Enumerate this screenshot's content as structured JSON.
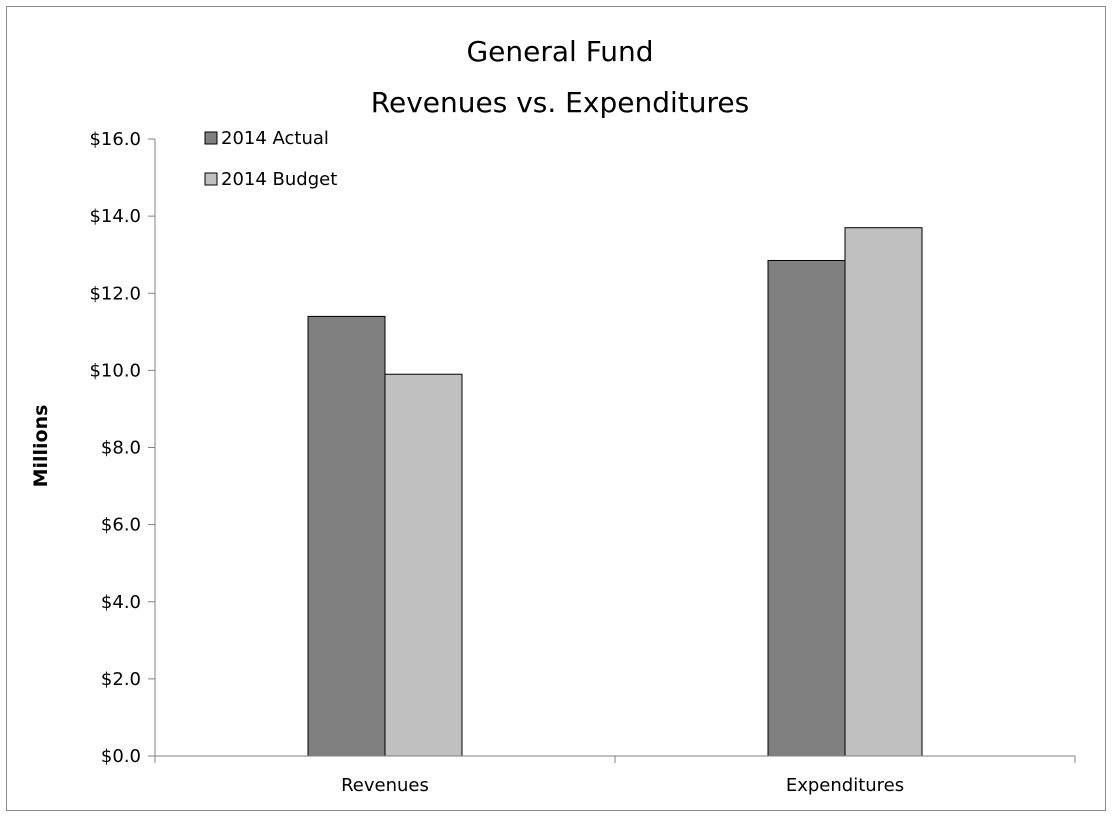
{
  "chart_data": {
    "type": "bar",
    "title": [
      "General Fund",
      "Revenues vs. Expenditures"
    ],
    "ylabel": "Millions",
    "xlabel": "",
    "categories": [
      "Revenues",
      "Expenditures"
    ],
    "series": [
      {
        "name": "2014 Actual",
        "values": [
          11.4,
          12.85
        ],
        "color": "#808080"
      },
      {
        "name": "2014 Budget",
        "values": [
          9.9,
          13.7
        ],
        "color": "#c0c0c0"
      }
    ],
    "ylim": [
      0,
      16
    ],
    "yticks": [
      0,
      2,
      4,
      6,
      8,
      10,
      12,
      14,
      16
    ],
    "ytick_labels": [
      "$0.0",
      "$2.0",
      "$4.0",
      "$6.0",
      "$8.0",
      "$10.0",
      "$12.0",
      "$14.0",
      "$16.0"
    ],
    "grid": false,
    "legend_position": "top-left"
  }
}
